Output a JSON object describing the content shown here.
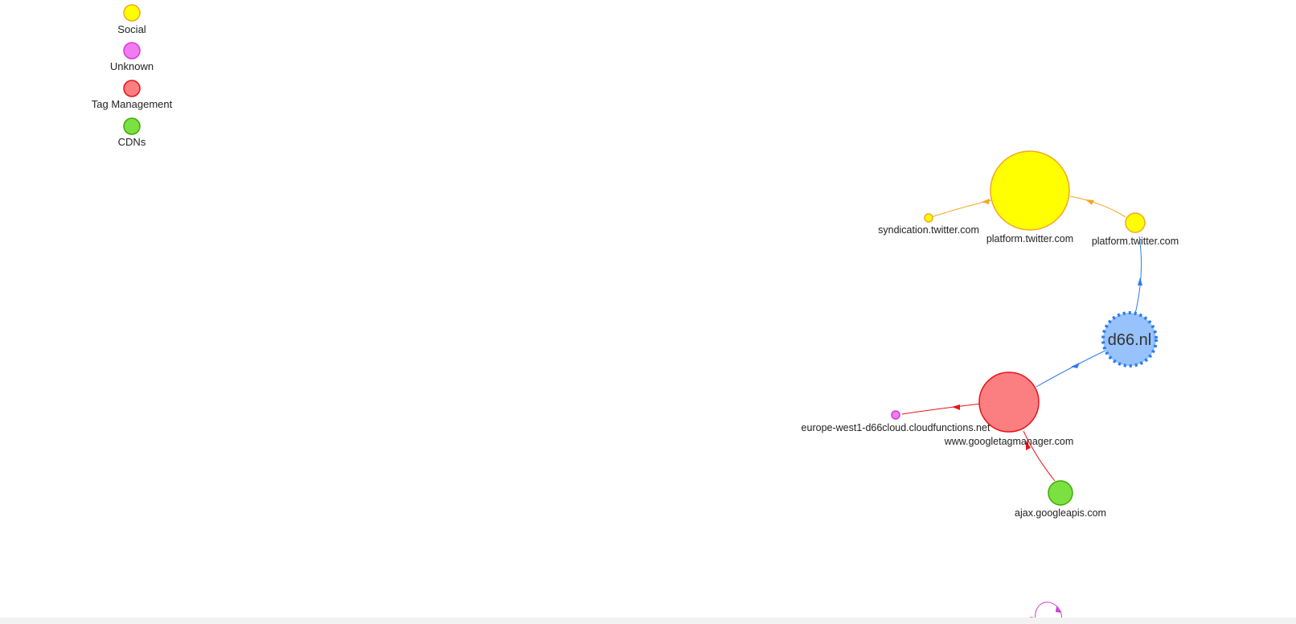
{
  "legend": [
    {
      "id": "social",
      "label": "Social",
      "fill": "#ffff00",
      "stroke": "#f5a623"
    },
    {
      "id": "unknown",
      "label": "Unknown",
      "fill": "#f07cf0",
      "stroke": "#d63ad6"
    },
    {
      "id": "tag-management",
      "label": "Tag Management",
      "fill": "#fb7e81",
      "stroke": "#e8131a"
    },
    {
      "id": "cdns",
      "label": "CDNs",
      "fill": "#7be141",
      "stroke": "#41a906"
    }
  ],
  "root": {
    "label": "d66.nl",
    "fill": "#97c2fc",
    "stroke": "#2b7ce9"
  },
  "nodes": {
    "syndication": {
      "label": "syndication.twitter.com",
      "category": "social"
    },
    "platform_big": {
      "label": "platform.twitter.com",
      "category": "social"
    },
    "platform_small": {
      "label": "platform.twitter.com",
      "category": "social"
    },
    "gtm": {
      "label": "www.googletagmanager.com",
      "category": "tag-management"
    },
    "cloudfunctions": {
      "label": "europe-west1-d66cloud.cloudfunctions.net",
      "category": "unknown"
    },
    "ajax": {
      "label": "ajax.googleapis.com",
      "category": "cdns"
    },
    "bottom_unknown": {
      "label": "",
      "category": "unknown"
    }
  },
  "edges": [
    {
      "from": "root",
      "to": "platform_small",
      "color": "#2b7ce9"
    },
    {
      "from": "platform_small",
      "to": "platform_big",
      "color": "#f5a623"
    },
    {
      "from": "platform_big",
      "to": "syndication",
      "color": "#f5a623"
    },
    {
      "from": "root",
      "to": "gtm",
      "color": "#2b7ce9"
    },
    {
      "from": "gtm",
      "to": "cloudfunctions",
      "color": "#e8131a"
    },
    {
      "from": "ajax",
      "to": "gtm",
      "color": "#e8131a"
    },
    {
      "from": "bottom_unknown",
      "to": "bottom_unknown",
      "color": "#d63ad6"
    }
  ]
}
